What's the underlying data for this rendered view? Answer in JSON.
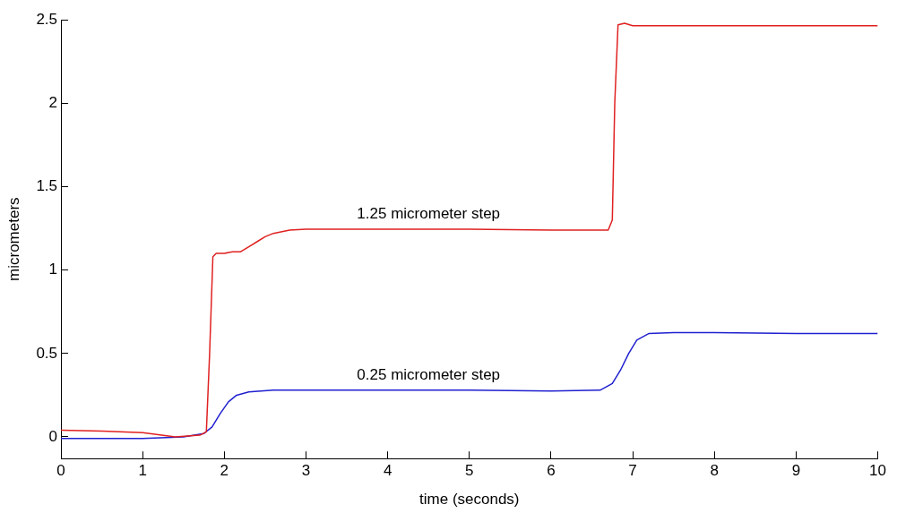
{
  "chart_data": {
    "type": "line",
    "xlabel": "time (seconds)",
    "ylabel": "micrometers",
    "xlim": [
      0,
      10
    ],
    "xticks": [
      0,
      1,
      2,
      3,
      4,
      5,
      6,
      7,
      8,
      9,
      10
    ],
    "ylim": [
      -0.13,
      2.5
    ],
    "yticks": [
      0,
      0.5,
      1,
      1.5,
      2,
      2.5
    ],
    "grid": false,
    "legend": false,
    "marker": "none",
    "line_style": "solid",
    "series": [
      {
        "color": "#e02020",
        "x": [
          0,
          0.5,
          1,
          1.4,
          1.7,
          1.78,
          1.82,
          1.86,
          1.9,
          2.0,
          2.1,
          2.2,
          2.3,
          2.4,
          2.5,
          2.6,
          2.8,
          3.0,
          4,
          5,
          6,
          6.7,
          6.75,
          6.78,
          6.82,
          6.9,
          7.0,
          7.5,
          8,
          9,
          10
        ],
        "values": [
          0.04,
          0.035,
          0.025,
          0.0,
          0.01,
          0.03,
          0.5,
          1.08,
          1.1,
          1.1,
          1.11,
          1.11,
          1.14,
          1.17,
          1.2,
          1.22,
          1.24,
          1.245,
          1.245,
          1.245,
          1.24,
          1.24,
          1.3,
          2.0,
          2.47,
          2.48,
          2.465,
          2.465,
          2.465,
          2.465,
          2.465
        ]
      },
      {
        "color": "#2020d0",
        "x": [
          0,
          0.5,
          1,
          1.5,
          1.75,
          1.85,
          1.95,
          2.05,
          2.15,
          2.3,
          2.6,
          3,
          4,
          5,
          6,
          6.6,
          6.75,
          6.85,
          6.95,
          7.05,
          7.2,
          7.5,
          8,
          9,
          10
        ],
        "values": [
          -0.01,
          -0.01,
          -0.01,
          0.0,
          0.02,
          0.06,
          0.14,
          0.21,
          0.25,
          0.27,
          0.28,
          0.28,
          0.28,
          0.28,
          0.275,
          0.28,
          0.32,
          0.4,
          0.5,
          0.58,
          0.62,
          0.625,
          0.625,
          0.62,
          0.62
        ]
      }
    ],
    "annotations": [
      {
        "text": "1.25 micrometer step",
        "x": 4.5,
        "y": 1.245
      },
      {
        "text": "0.25 micrometer step",
        "x": 4.5,
        "y": 0.28
      }
    ]
  }
}
